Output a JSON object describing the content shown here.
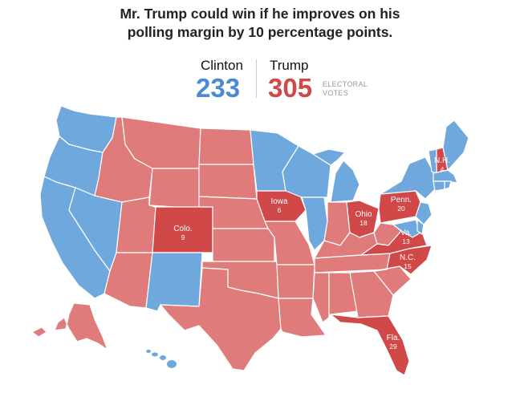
{
  "headline": {
    "line1": "Mr. Trump could win if he improves on his",
    "line2": "polling margin by 10 percentage points."
  },
  "tally": {
    "clinton_name": "Clinton",
    "clinton_votes": "233",
    "trump_name": "Trump",
    "trump_votes": "305",
    "ev_label_line1": "ELECTORAL",
    "ev_label_line2": "VOTES"
  },
  "colors": {
    "clinton": "#6fa8dc",
    "clinton_text": "#4a8bd1",
    "trump": "#e07b7b",
    "trump_text": "#d04848",
    "trump_flipped": "#d04848"
  },
  "flipped_states": [
    {
      "name": "Colo.",
      "ev": "9"
    },
    {
      "name": "Iowa",
      "ev": "6"
    },
    {
      "name": "Ohio",
      "ev": "18"
    },
    {
      "name": "Penn.",
      "ev": "20"
    },
    {
      "name": "N.H.",
      "ev": "4"
    },
    {
      "name": "Va.",
      "ev": "13"
    },
    {
      "name": "N.C.",
      "ev": "15"
    },
    {
      "name": "Fla.",
      "ev": "29"
    }
  ]
}
